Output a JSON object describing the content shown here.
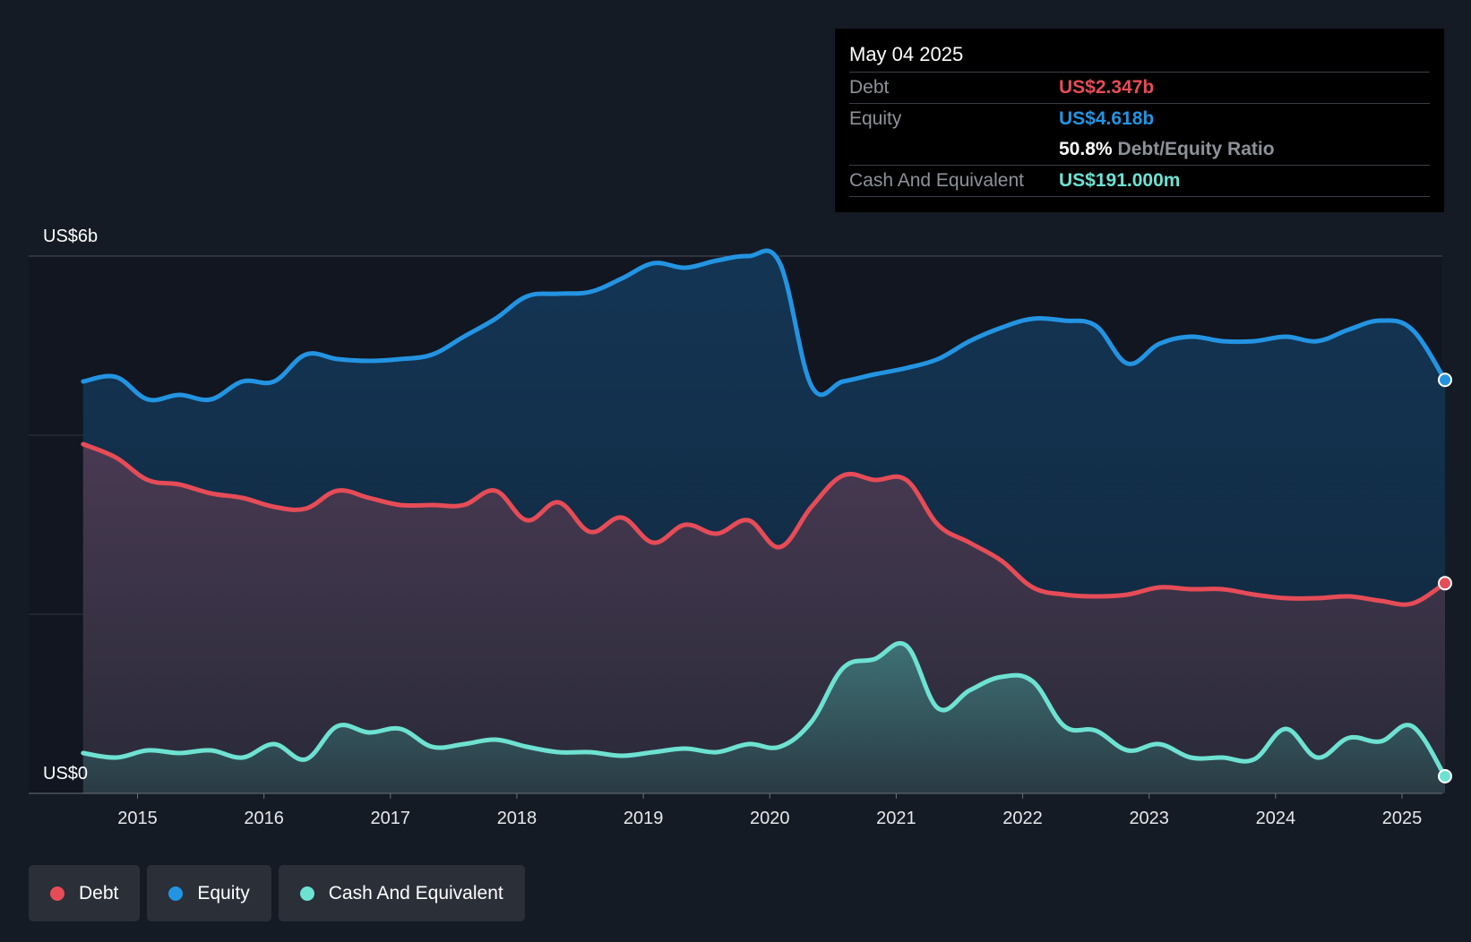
{
  "tooltip": {
    "date": "May 04 2025",
    "debt_label": "Debt",
    "debt_value": "US$2.347b",
    "equity_label": "Equity",
    "equity_value": "US$4.618b",
    "ratio_value": "50.8%",
    "ratio_label": "Debt/Equity Ratio",
    "cash_label": "Cash And Equivalent",
    "cash_value": "US$191.000m"
  },
  "legend": [
    {
      "label": "Debt",
      "color": "#e64c57"
    },
    {
      "label": "Equity",
      "color": "#2394e2"
    },
    {
      "label": "Cash And Equivalent",
      "color": "#6ee2d2"
    }
  ],
  "chart_data": {
    "type": "area",
    "title": "",
    "y_labels": {
      "top": "US$6b",
      "bottom": "US$0"
    },
    "ylim": [
      0,
      6
    ],
    "xlim": [
      2014.57,
      2025.34
    ],
    "x_ticks": [
      2015,
      2016,
      2017,
      2018,
      2019,
      2020,
      2021,
      2022,
      2023,
      2024,
      2025
    ],
    "x_tick_labels": [
      "2015",
      "2016",
      "2017",
      "2018",
      "2019",
      "2020",
      "2021",
      "2022",
      "2023",
      "2024",
      "2025"
    ],
    "grid": true,
    "series": [
      {
        "name": "Equity",
        "color": "#2394e2",
        "x": [
          2014.57,
          2014.83,
          2015.08,
          2015.33,
          2015.58,
          2015.83,
          2016.08,
          2016.33,
          2016.58,
          2016.83,
          2017.08,
          2017.33,
          2017.58,
          2017.83,
          2018.08,
          2018.33,
          2018.58,
          2018.83,
          2019.08,
          2019.33,
          2019.58,
          2019.83,
          2020.08,
          2020.33,
          2020.58,
          2020.83,
          2021.08,
          2021.33,
          2021.58,
          2021.83,
          2022.08,
          2022.33,
          2022.58,
          2022.83,
          2023.08,
          2023.33,
          2023.58,
          2023.83,
          2024.08,
          2024.33,
          2024.58,
          2024.83,
          2025.08,
          2025.34
        ],
        "values": [
          4.6,
          4.65,
          4.4,
          4.45,
          4.4,
          4.6,
          4.6,
          4.9,
          4.85,
          4.83,
          4.85,
          4.9,
          5.1,
          5.3,
          5.55,
          5.58,
          5.6,
          5.75,
          5.92,
          5.87,
          5.95,
          6.0,
          5.92,
          4.55,
          4.6,
          4.68,
          4.75,
          4.85,
          5.05,
          5.2,
          5.3,
          5.28,
          5.22,
          4.8,
          5.02,
          5.1,
          5.05,
          5.05,
          5.1,
          5.05,
          5.18,
          5.28,
          5.18,
          4.618
        ]
      },
      {
        "name": "Debt",
        "color": "#e64c57",
        "x": [
          2014.57,
          2014.83,
          2015.08,
          2015.33,
          2015.58,
          2015.83,
          2016.08,
          2016.33,
          2016.58,
          2016.83,
          2017.08,
          2017.33,
          2017.58,
          2017.83,
          2018.08,
          2018.33,
          2018.58,
          2018.83,
          2019.08,
          2019.33,
          2019.58,
          2019.83,
          2020.08,
          2020.33,
          2020.58,
          2020.83,
          2021.08,
          2021.33,
          2021.58,
          2021.83,
          2022.08,
          2022.33,
          2022.58,
          2022.83,
          2023.08,
          2023.33,
          2023.58,
          2023.83,
          2024.08,
          2024.33,
          2024.58,
          2024.83,
          2025.08,
          2025.34
        ],
        "values": [
          3.9,
          3.75,
          3.5,
          3.45,
          3.35,
          3.3,
          3.2,
          3.18,
          3.38,
          3.3,
          3.22,
          3.22,
          3.22,
          3.38,
          3.05,
          3.25,
          2.92,
          3.08,
          2.8,
          3.0,
          2.9,
          3.05,
          2.75,
          3.2,
          3.55,
          3.5,
          3.5,
          3.0,
          2.8,
          2.6,
          2.3,
          2.22,
          2.2,
          2.22,
          2.3,
          2.28,
          2.28,
          2.22,
          2.18,
          2.18,
          2.2,
          2.15,
          2.12,
          2.347
        ]
      },
      {
        "name": "Cash And Equivalent",
        "color": "#6ee2d2",
        "x": [
          2014.57,
          2014.83,
          2015.08,
          2015.33,
          2015.58,
          2015.83,
          2016.08,
          2016.33,
          2016.58,
          2016.83,
          2017.08,
          2017.33,
          2017.58,
          2017.83,
          2018.08,
          2018.33,
          2018.58,
          2018.83,
          2019.08,
          2019.33,
          2019.58,
          2019.83,
          2020.08,
          2020.33,
          2020.58,
          2020.83,
          2021.08,
          2021.33,
          2021.58,
          2021.83,
          2022.08,
          2022.33,
          2022.58,
          2022.83,
          2023.08,
          2023.33,
          2023.58,
          2023.83,
          2024.08,
          2024.33,
          2024.58,
          2024.83,
          2025.08,
          2025.34
        ],
        "values": [
          0.45,
          0.4,
          0.48,
          0.45,
          0.48,
          0.4,
          0.55,
          0.38,
          0.75,
          0.68,
          0.72,
          0.52,
          0.55,
          0.6,
          0.52,
          0.46,
          0.46,
          0.42,
          0.46,
          0.5,
          0.46,
          0.55,
          0.52,
          0.8,
          1.4,
          1.5,
          1.65,
          0.95,
          1.15,
          1.3,
          1.25,
          0.75,
          0.7,
          0.48,
          0.55,
          0.4,
          0.4,
          0.38,
          0.72,
          0.4,
          0.62,
          0.58,
          0.75,
          0.191
        ]
      }
    ]
  }
}
